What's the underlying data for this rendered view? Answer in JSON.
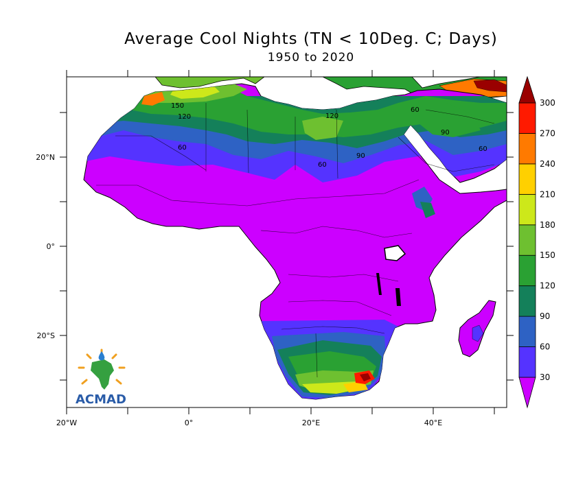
{
  "title": "Average Cool Nights (TN < 10Deg. C; Days)",
  "subtitle": "1950 to 2020",
  "map": {
    "region": "Africa",
    "variable": "Average number of cool nights (TN < 10 Deg. C)",
    "units": "Days",
    "lon_range": [
      -20,
      52
    ],
    "lat_range": [
      -36,
      38
    ],
    "x_tick_labels": [
      "20°W",
      "0°",
      "20°E",
      "40°E"
    ],
    "y_tick_labels": [
      "20°N",
      "0°",
      "20°S"
    ],
    "contour_labels": [
      "150",
      "120",
      "60",
      "60",
      "120",
      "90",
      "60",
      "90",
      "60"
    ],
    "colors": {
      "ocean": "#ffffff",
      "coast": "#000000"
    }
  },
  "colorbar": {
    "labels": [
      "30",
      "60",
      "90",
      "120",
      "150",
      "180",
      "210",
      "240",
      "270",
      "300"
    ],
    "colors": [
      "#cc00ff",
      "#5533ff",
      "#2e62c4",
      "#14805a",
      "#2aa133",
      "#6ec030",
      "#cde81a",
      "#ffd000",
      "#ff7a00",
      "#ff1a00",
      "#9a0000"
    ]
  },
  "logo": {
    "text": "ACMAD"
  }
}
